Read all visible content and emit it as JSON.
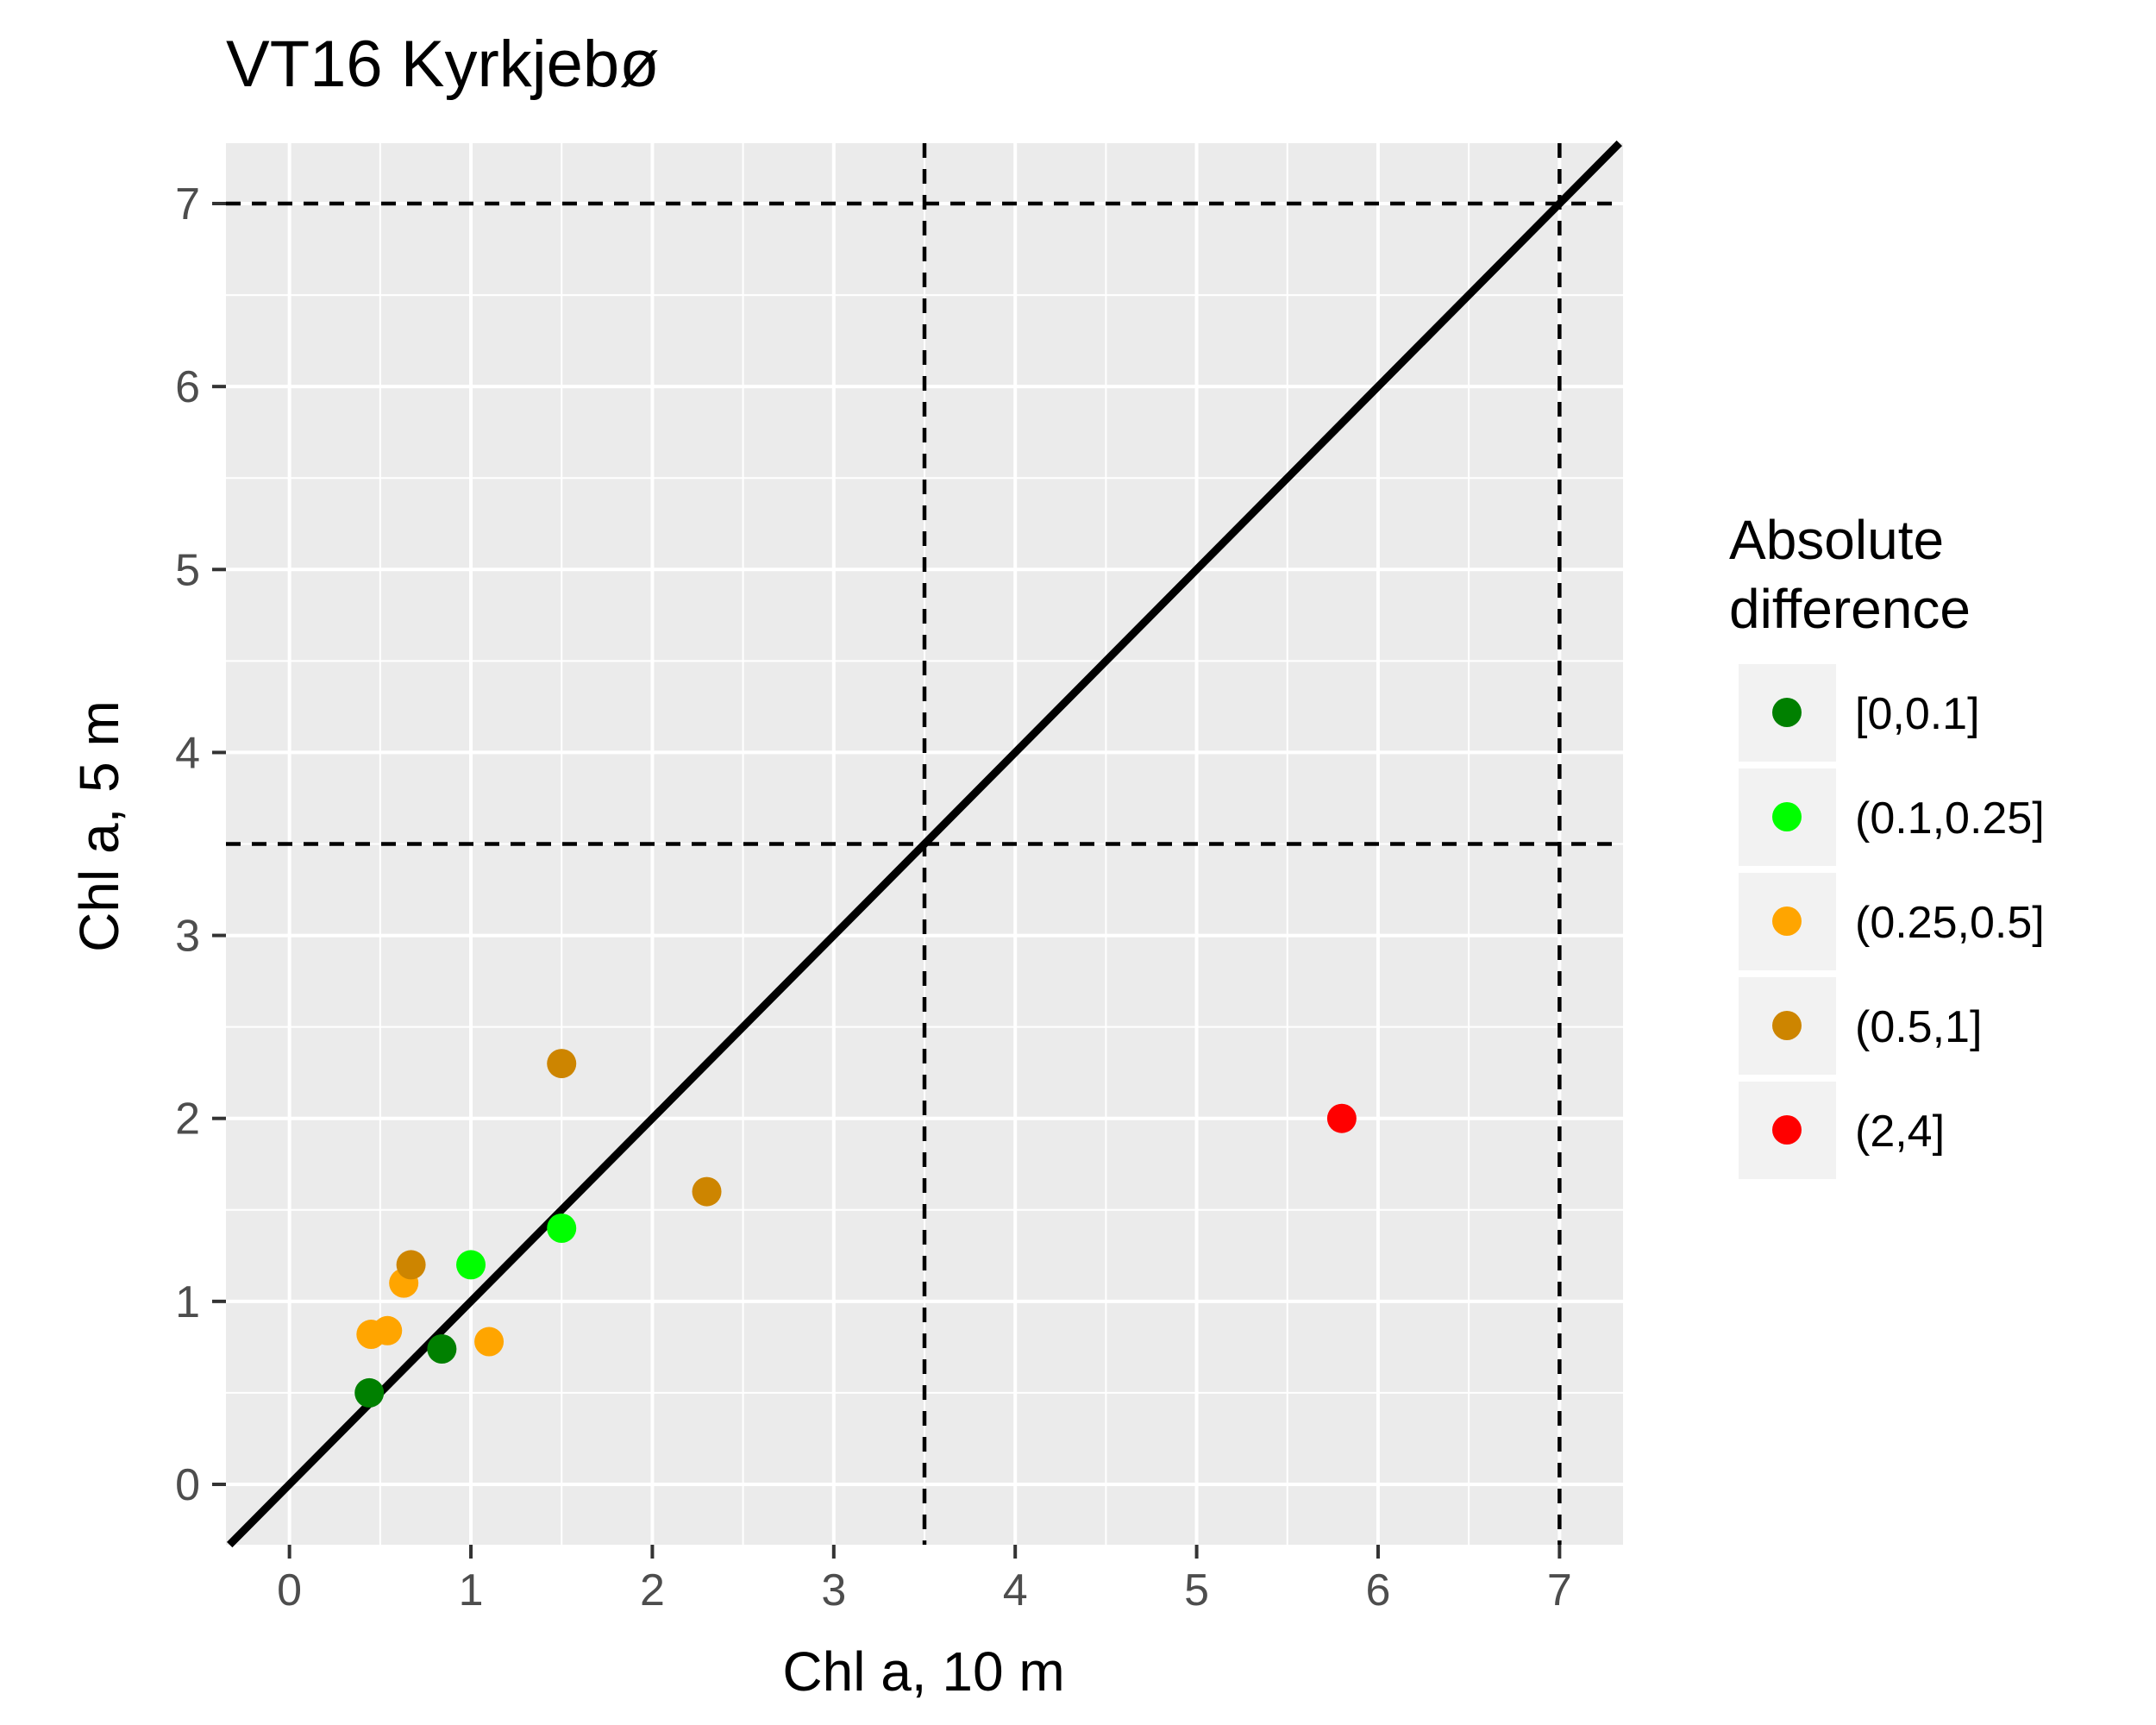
{
  "chart_data": {
    "type": "scatter",
    "title": "VT16 Kyrkjebø",
    "xlabel": "Chl a, 10 m",
    "ylabel": "Chl a, 5 m",
    "xlim": [
      -0.35,
      7.35
    ],
    "ylim": [
      -0.33,
      7.33
    ],
    "xticks": [
      "0",
      "1",
      "2",
      "3",
      "4",
      "5",
      "6",
      "7"
    ],
    "yticks": [
      "0",
      "1",
      "2",
      "3",
      "4",
      "5",
      "6",
      "7"
    ],
    "grid": true,
    "legend_position": "right",
    "legend": {
      "title_line1": "Absolute",
      "title_line2": "difference",
      "entries": [
        {
          "label": "[0,0.1]",
          "color": "#008000"
        },
        {
          "label": "(0.1,0.25]",
          "color": "#00ff00"
        },
        {
          "label": "(0.25,0.5]",
          "color": "#ffa500"
        },
        {
          "label": "(0.5,1]",
          "color": "#cd8500"
        },
        {
          "label": "(2,4]",
          "color": "#ff0000"
        }
      ]
    },
    "points": [
      {
        "x": 0.44,
        "y": 0.5,
        "group": 0
      },
      {
        "x": 0.84,
        "y": 0.74,
        "group": 0
      },
      {
        "x": 1.0,
        "y": 1.2,
        "group": 1
      },
      {
        "x": 1.5,
        "y": 1.4,
        "group": 1
      },
      {
        "x": 0.45,
        "y": 0.82,
        "group": 2
      },
      {
        "x": 0.54,
        "y": 0.84,
        "group": 2
      },
      {
        "x": 0.63,
        "y": 1.1,
        "group": 2
      },
      {
        "x": 1.1,
        "y": 0.78,
        "group": 2
      },
      {
        "x": 0.67,
        "y": 1.2,
        "group": 3
      },
      {
        "x": 1.5,
        "y": 2.3,
        "group": 3
      },
      {
        "x": 2.3,
        "y": 1.6,
        "group": 3
      },
      {
        "x": 5.8,
        "y": 2.0,
        "group": 4
      }
    ],
    "reference_lines": {
      "identity_line": true,
      "vertical_dashed": [
        3.5,
        7
      ],
      "horizontal_dashed": [
        3.5,
        7
      ]
    }
  }
}
